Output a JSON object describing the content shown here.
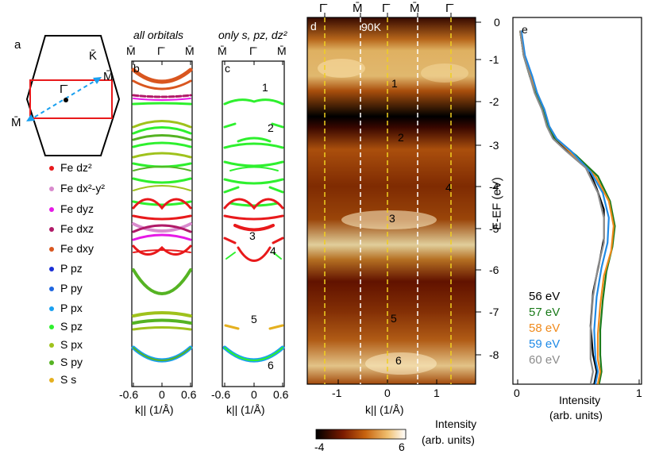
{
  "panel_a": {
    "label": "a",
    "points": {
      "K": "K̄",
      "M_top": "M̄",
      "Gamma": "Γ̄",
      "M_bottom": "M̄"
    }
  },
  "legend": [
    {
      "label": "Fe dz²",
      "color": "#e8191b"
    },
    {
      "label": "Fe dx²-y²",
      "color": "#d98acd"
    },
    {
      "label": "Fe dyz",
      "color": "#e619e6"
    },
    {
      "label": "Fe dxz",
      "color": "#b01a68"
    },
    {
      "label": "Fe dxy",
      "color": "#d9561f"
    },
    {
      "label": "P pz",
      "color": "#1a2fd6"
    },
    {
      "label": "P py",
      "color": "#1f66e0"
    },
    {
      "label": "P px",
      "color": "#1aa0f0"
    },
    {
      "label": "S pz",
      "color": "#2ef02e"
    },
    {
      "label": "S px",
      "color": "#9fc21c"
    },
    {
      "label": "S py",
      "color": "#55b323"
    },
    {
      "label": "S s",
      "color": "#e5b01f"
    }
  ],
  "panel_b": {
    "label": "b",
    "title": "all orbitals",
    "top_ticks": [
      "M̄",
      "Γ̄",
      "M̄"
    ],
    "x_ticks": [
      "-0.6",
      "0",
      "0.6"
    ],
    "xlabel": "k|| (1/Å)"
  },
  "panel_c": {
    "label": "c",
    "title": "only s, pz, dz²",
    "top_ticks": [
      "M̄",
      "Γ̄",
      "M̄"
    ],
    "x_ticks": [
      "-0.6",
      "0",
      "0.6"
    ],
    "xlabel": "k|| (1/Å)",
    "band_labels": [
      "1",
      "2",
      "3",
      "4",
      "5",
      "6"
    ]
  },
  "panel_d": {
    "label": "d",
    "temp": "90K",
    "top_ticks": [
      "Γ̄",
      "M̄",
      "Γ̄",
      "M̄",
      "Γ̄"
    ],
    "x_ticks": [
      "-1",
      "0",
      "1"
    ],
    "xlabel": "k|| (1/Å)",
    "band_labels": [
      "1",
      "2",
      "3",
      "4",
      "5",
      "6"
    ],
    "colorbar": {
      "title": "Intensity",
      "subtitle": "(arb. units)",
      "min": "-4",
      "max": "6"
    }
  },
  "energy_axis": {
    "ylabel": "E-EF (eV)",
    "ticks": [
      "0",
      "-1",
      "-2",
      "-3",
      "-4",
      "-5",
      "-6",
      "-7",
      "-8"
    ]
  },
  "panel_e": {
    "label": "e",
    "x_ticks": [
      "0",
      "1"
    ],
    "xlabel": "Intensity",
    "xlabel2": "(arb. units)"
  },
  "chart_data": {
    "type": "line",
    "title": "",
    "xlabel": "Intensity (arb. units)",
    "ylabel": "E-EF (eV)",
    "xlim": [
      0,
      1
    ],
    "ylim": [
      -8.7,
      0
    ],
    "series": [
      {
        "name": "56 eV",
        "color": "#000000",
        "points": [
          [
            0.02,
            -0.2
          ],
          [
            0.05,
            -0.8
          ],
          [
            0.1,
            -1.3
          ],
          [
            0.15,
            -1.7
          ],
          [
            0.21,
            -2.1
          ],
          [
            0.25,
            -2.5
          ],
          [
            0.3,
            -2.8
          ],
          [
            0.42,
            -3.1
          ],
          [
            0.58,
            -3.5
          ],
          [
            0.65,
            -4.0
          ],
          [
            0.71,
            -4.5
          ],
          [
            0.71,
            -5.2
          ],
          [
            0.67,
            -5.8
          ],
          [
            0.62,
            -6.5
          ],
          [
            0.6,
            -7.3
          ],
          [
            0.62,
            -8.0
          ],
          [
            0.65,
            -8.4
          ],
          [
            0.63,
            -8.7
          ]
        ]
      },
      {
        "name": "57 eV",
        "color": "#1a7a1a",
        "points": [
          [
            0.02,
            -0.2
          ],
          [
            0.05,
            -0.8
          ],
          [
            0.1,
            -1.3
          ],
          [
            0.15,
            -1.7
          ],
          [
            0.21,
            -2.1
          ],
          [
            0.25,
            -2.5
          ],
          [
            0.31,
            -2.8
          ],
          [
            0.48,
            -3.2
          ],
          [
            0.66,
            -3.7
          ],
          [
            0.76,
            -4.3
          ],
          [
            0.8,
            -4.9
          ],
          [
            0.78,
            -5.4
          ],
          [
            0.73,
            -6.0
          ],
          [
            0.7,
            -6.7
          ],
          [
            0.68,
            -7.4
          ],
          [
            0.68,
            -8.0
          ],
          [
            0.69,
            -8.4
          ],
          [
            0.67,
            -8.7
          ]
        ]
      },
      {
        "name": "58 eV",
        "color": "#f08a1c",
        "points": [
          [
            0.02,
            -0.2
          ],
          [
            0.05,
            -0.8
          ],
          [
            0.11,
            -1.3
          ],
          [
            0.16,
            -1.7
          ],
          [
            0.22,
            -2.1
          ],
          [
            0.26,
            -2.5
          ],
          [
            0.32,
            -2.8
          ],
          [
            0.46,
            -3.2
          ],
          [
            0.64,
            -3.7
          ],
          [
            0.75,
            -4.3
          ],
          [
            0.79,
            -4.9
          ],
          [
            0.77,
            -5.5
          ],
          [
            0.71,
            -6.1
          ],
          [
            0.68,
            -6.8
          ],
          [
            0.66,
            -7.5
          ],
          [
            0.66,
            -8.1
          ],
          [
            0.68,
            -8.4
          ],
          [
            0.66,
            -8.7
          ]
        ]
      },
      {
        "name": "59 eV",
        "color": "#1f8ae6",
        "points": [
          [
            0.03,
            -0.2
          ],
          [
            0.06,
            -0.8
          ],
          [
            0.12,
            -1.3
          ],
          [
            0.16,
            -1.7
          ],
          [
            0.22,
            -2.1
          ],
          [
            0.26,
            -2.5
          ],
          [
            0.32,
            -2.8
          ],
          [
            0.44,
            -3.1
          ],
          [
            0.6,
            -3.6
          ],
          [
            0.7,
            -4.1
          ],
          [
            0.75,
            -4.7
          ],
          [
            0.74,
            -5.3
          ],
          [
            0.69,
            -5.9
          ],
          [
            0.65,
            -6.6
          ],
          [
            0.63,
            -7.4
          ],
          [
            0.64,
            -8.1
          ],
          [
            0.66,
            -8.4
          ],
          [
            0.64,
            -8.7
          ]
        ]
      },
      {
        "name": "60 eV",
        "color": "#8c8c8c",
        "points": [
          [
            0.02,
            -0.2
          ],
          [
            0.05,
            -0.8
          ],
          [
            0.1,
            -1.3
          ],
          [
            0.14,
            -1.7
          ],
          [
            0.2,
            -2.1
          ],
          [
            0.24,
            -2.5
          ],
          [
            0.29,
            -2.8
          ],
          [
            0.4,
            -3.1
          ],
          [
            0.56,
            -3.5
          ],
          [
            0.66,
            -4.1
          ],
          [
            0.71,
            -4.7
          ],
          [
            0.71,
            -5.3
          ],
          [
            0.66,
            -5.9
          ],
          [
            0.62,
            -6.6
          ],
          [
            0.6,
            -7.4
          ],
          [
            0.6,
            -8.1
          ],
          [
            0.62,
            -8.4
          ],
          [
            0.6,
            -8.7
          ]
        ]
      }
    ]
  }
}
